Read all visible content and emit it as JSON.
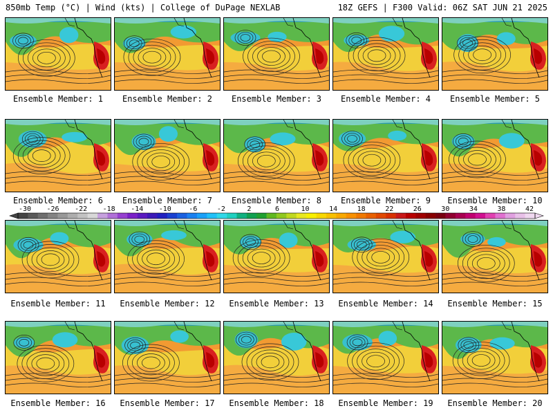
{
  "header": {
    "left_title": "850mb Temp (°C) | Wind (kts) | College of DuPage NEXLAB",
    "right_title": "18Z GEFS | F300 Valid: 06Z SAT JUN 21 2025"
  },
  "member_label_prefix": "Ensemble Member: ",
  "members": [
    1,
    2,
    3,
    4,
    5,
    6,
    7,
    8,
    9,
    10,
    11,
    12,
    13,
    14,
    15,
    16,
    17,
    18,
    19,
    20
  ],
  "colorbar": {
    "labels": [
      "-30",
      "-26",
      "-22",
      "-18",
      "-14",
      "-10",
      "-6",
      "-2",
      "2",
      "6",
      "10",
      "14",
      "18",
      "22",
      "26",
      "30",
      "34",
      "38",
      "42"
    ],
    "colors": [
      "#444444",
      "#595959",
      "#6e6e6e",
      "#838383",
      "#989898",
      "#adadad",
      "#c2c2c2",
      "#d8d8d8",
      "#c6a0de",
      "#b070d8",
      "#9640d0",
      "#7a20c8",
      "#5a1ac0",
      "#3c1ab8",
      "#2020c0",
      "#1a40d0",
      "#1a60e0",
      "#1a80f0",
      "#1aa0f8",
      "#20c0f8",
      "#30d8e8",
      "#20d0c0",
      "#10b080",
      "#10a050",
      "#20a030",
      "#60b820",
      "#90c820",
      "#c0d820",
      "#e8e820",
      "#f8f000",
      "#f8d800",
      "#f8c000",
      "#f8a800",
      "#f89000",
      "#f07800",
      "#e86000",
      "#e04800",
      "#d83000",
      "#c81818",
      "#b80000",
      "#a00000",
      "#880000",
      "#780010",
      "#900030",
      "#a80050",
      "#c00070",
      "#d01090",
      "#e040b0",
      "#e070d0",
      "#e0a0e0",
      "#e8c0e8",
      "#f0d8f0"
    ]
  }
}
